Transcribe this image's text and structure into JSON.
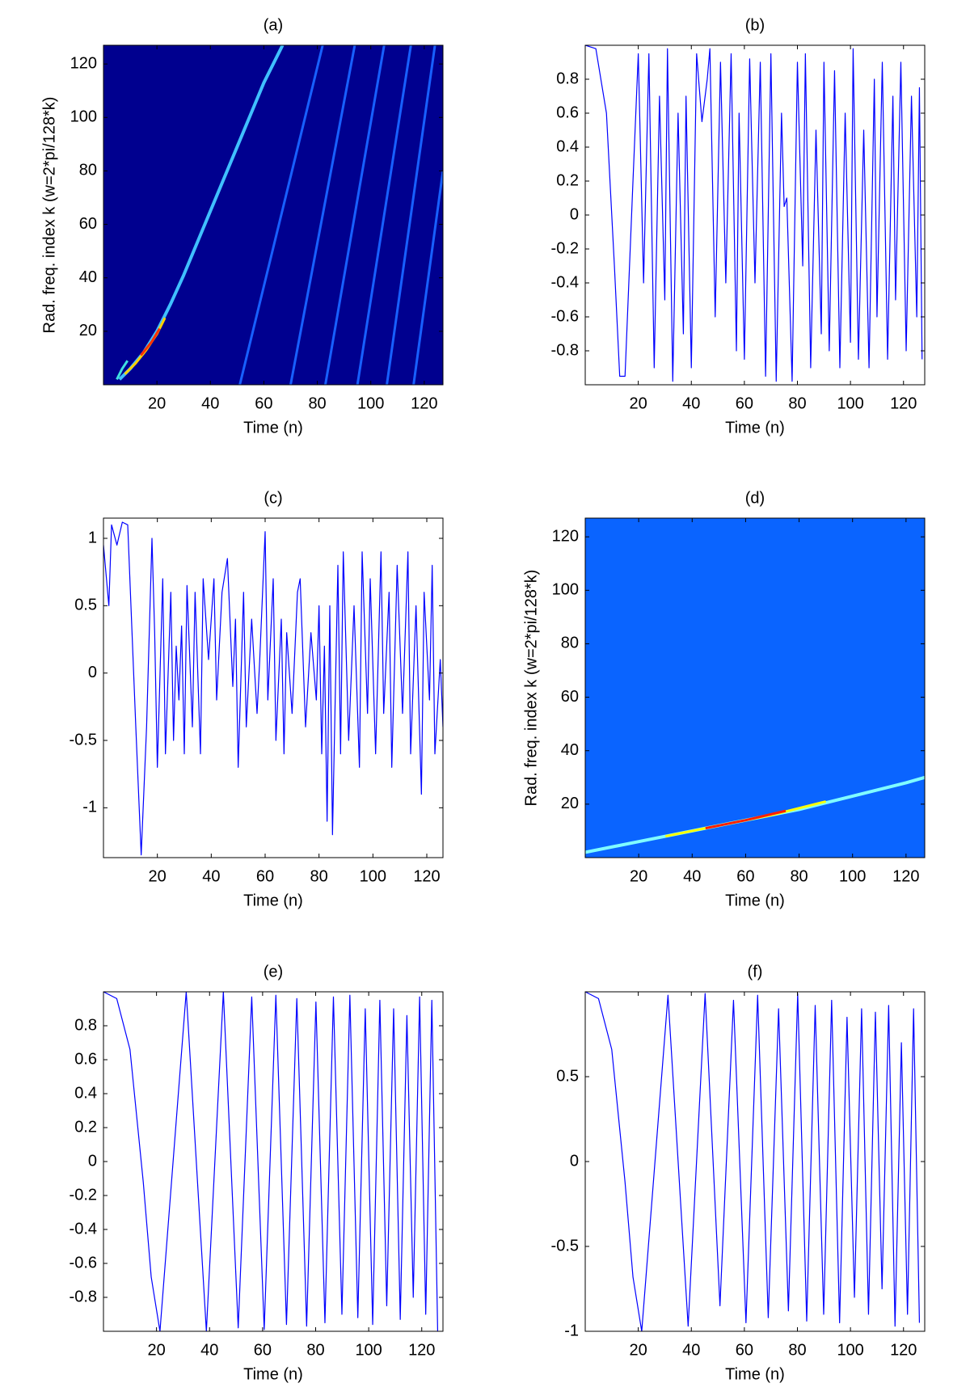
{
  "chart_data": [
    {
      "type": "heatmap",
      "title": "(a)",
      "xlabel": "Time (n)",
      "ylabel": "Rad. freq. index k (w=2*pi/128*k)",
      "xlim": [
        0,
        127
      ],
      "ylim": [
        0,
        127
      ],
      "xticks": [
        20,
        40,
        60,
        80,
        100,
        120
      ],
      "yticks": [
        20,
        40,
        60,
        80,
        100,
        120
      ],
      "background": "#00008f",
      "ridges": [
        {
          "color": "#40c0ff",
          "x": [
            6,
            10,
            15,
            20,
            25,
            30,
            35,
            40,
            45,
            50,
            55,
            60,
            67
          ],
          "y": [
            2,
            6,
            12,
            20,
            30,
            41,
            53,
            65,
            77,
            89,
            101,
            113,
            127
          ]
        },
        {
          "color": "#ffd000",
          "x": [
            8,
            12,
            16,
            20,
            23
          ],
          "y": [
            4,
            8,
            13,
            19,
            25
          ]
        },
        {
          "color": "#ff3000",
          "x": [
            14,
            18,
            21
          ],
          "y": [
            11,
            16,
            21
          ]
        },
        {
          "color": "#40e0e0",
          "x": [
            5,
            7,
            9
          ],
          "y": [
            2,
            6,
            9
          ]
        },
        {
          "color": "#1860ff",
          "x": [
            51,
            82
          ],
          "y": [
            0,
            127
          ]
        },
        {
          "color": "#1860ff",
          "x": [
            70,
            94
          ],
          "y": [
            0,
            127
          ]
        },
        {
          "color": "#1860ff",
          "x": [
            83,
            105
          ],
          "y": [
            0,
            127
          ]
        },
        {
          "color": "#1860ff",
          "x": [
            95,
            115
          ],
          "y": [
            0,
            127
          ]
        },
        {
          "color": "#1860ff",
          "x": [
            106,
            124
          ],
          "y": [
            0,
            127
          ]
        },
        {
          "color": "#1860ff",
          "x": [
            116,
            127
          ],
          "y": [
            0,
            80
          ]
        }
      ]
    },
    {
      "type": "line",
      "title": "(b)",
      "xlabel": "Time (n)",
      "xlim": [
        0,
        128
      ],
      "ylim": [
        -1,
        1
      ],
      "xticks": [
        20,
        40,
        60,
        80,
        100,
        120
      ],
      "yticks": [
        -0.8,
        -0.6,
        -0.4,
        -0.2,
        0,
        0.2,
        0.4,
        0.6,
        0.8
      ],
      "series": [
        {
          "color": "#0000ff",
          "x": [
            0,
            4,
            8,
            11,
            13,
            15,
            18,
            20,
            22,
            24,
            26,
            28,
            30,
            31,
            33,
            35,
            37,
            38,
            40,
            42,
            44,
            46,
            47,
            49,
            51,
            53,
            55,
            57,
            58,
            60,
            62,
            64,
            66,
            68,
            70,
            72,
            74,
            75,
            76,
            78,
            80,
            82,
            83,
            85,
            87,
            89,
            90,
            92,
            94,
            96,
            98,
            100,
            101,
            103,
            105,
            107,
            109,
            110,
            112,
            114,
            116,
            117,
            119,
            121,
            123,
            125,
            126,
            127
          ],
          "values": [
            1,
            0.98,
            0.6,
            -0.3,
            -0.95,
            -0.95,
            0.2,
            0.95,
            -0.4,
            0.95,
            -0.9,
            0.7,
            -0.5,
            0.98,
            -0.98,
            0.6,
            -0.7,
            0.7,
            -0.9,
            0.95,
            0.55,
            0.8,
            0.98,
            -0.6,
            0.9,
            -0.4,
            0.95,
            -0.8,
            0.6,
            -0.85,
            0.92,
            -0.4,
            0.9,
            -0.95,
            0.95,
            -0.98,
            0.6,
            0.05,
            0.1,
            -0.98,
            0.9,
            -0.3,
            0.95,
            -0.9,
            0.5,
            -0.7,
            0.9,
            -0.8,
            0.85,
            -0.9,
            0.6,
            -0.75,
            0.98,
            -0.85,
            0.5,
            -0.9,
            0.8,
            -0.6,
            0.9,
            -0.85,
            0.7,
            -0.5,
            0.9,
            -0.8,
            0.7,
            -0.6,
            0.75,
            -0.85
          ]
        }
      ]
    },
    {
      "type": "line",
      "title": "(c)",
      "xlabel": "Time (n)",
      "xlim": [
        0,
        126
      ],
      "ylim": [
        -1.37,
        1.15
      ],
      "xticks": [
        20,
        40,
        60,
        80,
        100,
        120
      ],
      "yticks": [
        -1,
        -0.5,
        0,
        0.5,
        1
      ],
      "series": [
        {
          "color": "#0000ff",
          "x": [
            0,
            2,
            3,
            5,
            7,
            9,
            12,
            14,
            16,
            18,
            19,
            20,
            22,
            23,
            25,
            26,
            27,
            28,
            29,
            30,
            31,
            33,
            34,
            36,
            37,
            39,
            41,
            42,
            44,
            46,
            48,
            49,
            50,
            52,
            53,
            55,
            57,
            58,
            60,
            61,
            63,
            64,
            66,
            67,
            68,
            70,
            72,
            73,
            75,
            77,
            79,
            80,
            81,
            82,
            83,
            84,
            85,
            87,
            88,
            89,
            91,
            93,
            95,
            96,
            98,
            99,
            101,
            103,
            104,
            106,
            107,
            109,
            111,
            113,
            114,
            116,
            118,
            119,
            121,
            122,
            123,
            125,
            126
          ],
          "values": [
            0.95,
            0.5,
            1.1,
            0.95,
            1.12,
            1.1,
            -0.4,
            -1.35,
            -0.4,
            1.0,
            0.3,
            -0.7,
            0.7,
            -0.6,
            0.6,
            -0.5,
            0.2,
            -0.2,
            0.35,
            -0.6,
            0.65,
            -0.4,
            0.6,
            -0.6,
            0.7,
            0.1,
            0.7,
            -0.2,
            0.6,
            0.85,
            -0.1,
            0.4,
            -0.7,
            0.6,
            -0.4,
            0.4,
            -0.3,
            0.1,
            1.05,
            -0.2,
            0.7,
            -0.5,
            0.4,
            -0.6,
            0.3,
            -0.3,
            0.6,
            0.7,
            -0.4,
            0.3,
            -0.2,
            0.5,
            -0.6,
            0.2,
            -1.1,
            0.5,
            -1.2,
            0.8,
            -0.6,
            0.9,
            -0.5,
            0.5,
            -0.7,
            0.9,
            -0.3,
            0.7,
            -0.6,
            0.9,
            -0.3,
            0.6,
            -0.7,
            0.8,
            -0.3,
            0.9,
            -0.6,
            0.5,
            -0.9,
            0.6,
            -0.2,
            0.8,
            -0.6,
            0.1,
            -0.4
          ]
        }
      ]
    },
    {
      "type": "heatmap",
      "title": "(d)",
      "xlabel": "Time (n)",
      "ylabel": "Rad. freq. index k (w=2*pi/128*k)",
      "xlim": [
        0,
        127
      ],
      "ylim": [
        0,
        127
      ],
      "xticks": [
        20,
        40,
        60,
        80,
        100,
        120
      ],
      "yticks": [
        20,
        40,
        60,
        80,
        100,
        120
      ],
      "background": "#0a64ff",
      "ridges": [
        {
          "color": "#80ffff",
          "x": [
            0,
            20,
            40,
            60,
            80,
            100,
            120,
            127
          ],
          "y": [
            2,
            6,
            10,
            14,
            18,
            23,
            28,
            30
          ]
        },
        {
          "color": "#ffff00",
          "x": [
            30,
            50,
            70,
            90
          ],
          "y": [
            8,
            12,
            16,
            21
          ]
        },
        {
          "color": "#ff2000",
          "x": [
            45,
            60,
            75
          ],
          "y": [
            11,
            14,
            17.5
          ]
        }
      ]
    },
    {
      "type": "line",
      "title": "(e)",
      "xlabel": "Time (n)",
      "xlim": [
        0,
        128
      ],
      "ylim": [
        -1,
        1
      ],
      "xticks": [
        20,
        40,
        60,
        80,
        100,
        120
      ],
      "yticks": [
        -0.8,
        -0.6,
        -0.4,
        -0.2,
        0,
        0.2,
        0.4,
        0.6,
        0.8
      ],
      "series": [
        {
          "color": "#0000ff",
          "x": [
            0,
            5,
            10,
            15,
            18,
            21.3,
            31.2,
            38.8,
            45.2,
            50.8,
            55.9,
            60.6,
            65,
            69,
            72.9,
            76.6,
            80.1,
            83.5,
            86.7,
            89.9,
            92.9,
            95.9,
            98.7,
            101.5,
            104.2,
            106.8,
            109.4,
            111.9,
            114.4,
            116.8,
            119.2,
            121.5,
            123.8,
            126
          ],
          "values": [
            1,
            0.96,
            0.66,
            -0.12,
            -0.68,
            -1,
            1,
            -1,
            1,
            -0.98,
            0.97,
            -0.99,
            0.98,
            -0.96,
            0.96,
            -0.97,
            0.94,
            -0.95,
            0.97,
            -0.9,
            0.98,
            -0.92,
            0.9,
            -0.96,
            0.95,
            -0.85,
            0.9,
            -0.93,
            0.86,
            -0.8,
            0.97,
            -0.9,
            0.95,
            -1
          ]
        }
      ]
    },
    {
      "type": "line",
      "title": "(f)",
      "xlabel": "Time (n)",
      "xlim": [
        0,
        128
      ],
      "ylim": [
        -1,
        1
      ],
      "xticks": [
        20,
        40,
        60,
        80,
        100,
        120
      ],
      "yticks": [
        -1,
        -0.5,
        0,
        0.5
      ],
      "series": [
        {
          "color": "#0000ff",
          "x": [
            0,
            5,
            10,
            15,
            18,
            21.3,
            31.2,
            38.8,
            45.2,
            50.8,
            55.9,
            60.6,
            65,
            69,
            72.9,
            76.6,
            80.1,
            83.5,
            86.7,
            89.9,
            92.9,
            95.9,
            98.7,
            101.5,
            104.2,
            106.8,
            109.4,
            111.9,
            114.4,
            116.8,
            119.2,
            121.5,
            123.8,
            126
          ],
          "values": [
            1,
            0.96,
            0.66,
            -0.12,
            -0.68,
            -1,
            0.98,
            -0.97,
            0.99,
            -0.85,
            0.95,
            -0.95,
            0.98,
            -0.92,
            0.9,
            -0.88,
            0.99,
            -0.94,
            0.92,
            -0.9,
            0.95,
            -0.95,
            0.85,
            -0.8,
            0.9,
            -0.9,
            0.88,
            -0.75,
            0.92,
            -0.97,
            0.7,
            -0.9,
            0.9,
            -0.95
          ]
        }
      ]
    }
  ]
}
